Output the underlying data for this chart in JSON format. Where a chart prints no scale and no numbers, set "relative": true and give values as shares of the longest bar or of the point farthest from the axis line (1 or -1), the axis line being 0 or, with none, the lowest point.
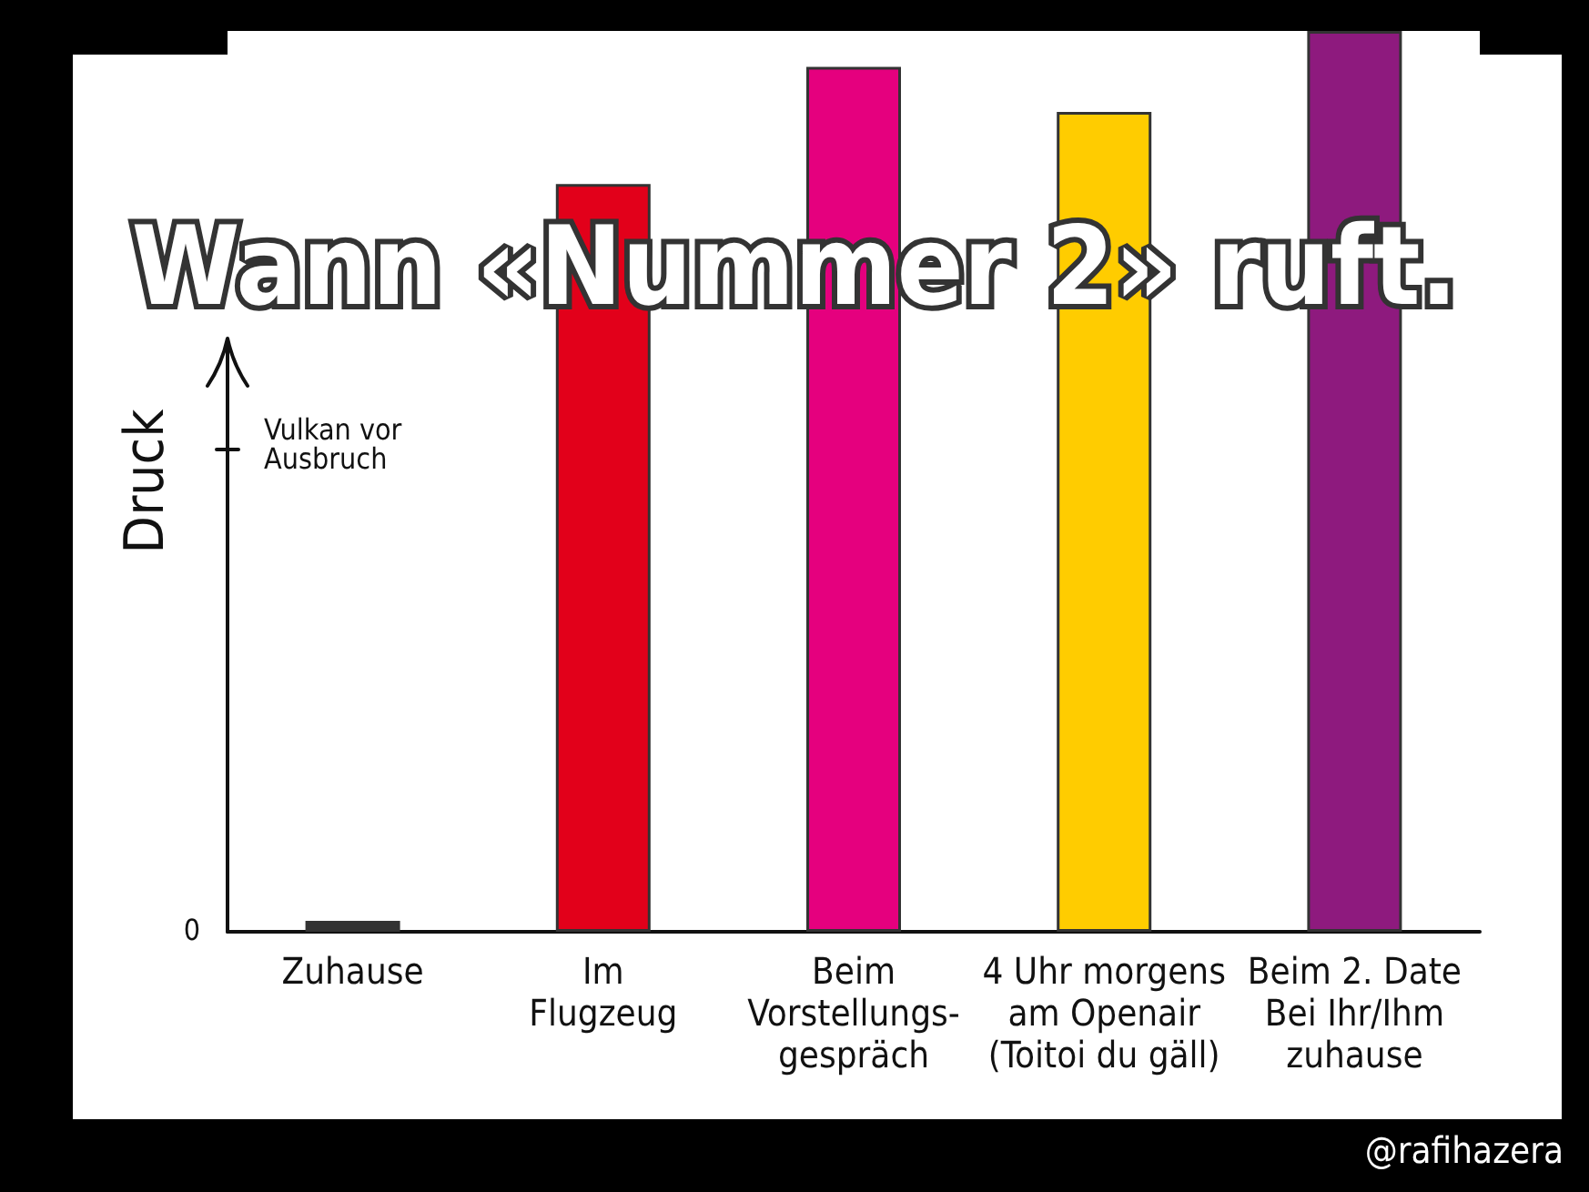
{
  "chart_data": {
    "type": "bar",
    "title": "Wann «Nummer 2» ruft.",
    "ylabel": "Druck",
    "relative": true,
    "categories": [
      "Zuhause",
      "Im\nFlugzeug",
      "Beim\nVorstellungs-\ngespräch",
      "4 Uhr morgens\nam Openair\n(Toitoi du gäll)",
      "Beim 2. Date\nBei Ihr/Ihm\nzuhause"
    ],
    "values": [
      0.012,
      0.83,
      0.96,
      0.91,
      1
    ],
    "colors": [
      "#333333",
      "#e2001a",
      "#e5007e",
      "#ffcc00",
      "#8e1a7e"
    ],
    "annotations": [
      "0",
      "Vulkan vor Ausbruch",
      "@rafihazera"
    ],
    "grid": false
  }
}
